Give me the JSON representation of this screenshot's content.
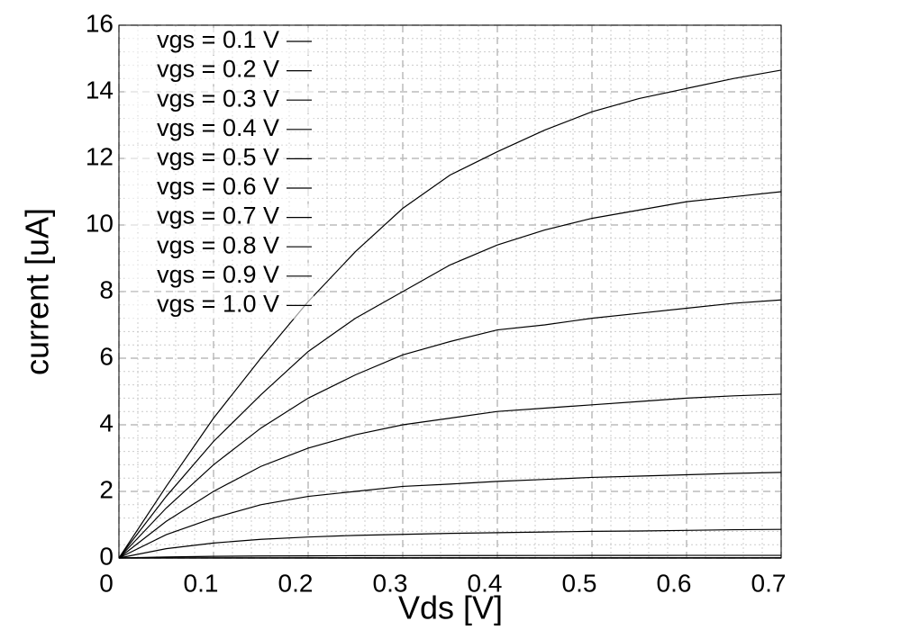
{
  "chart_data": {
    "type": "line",
    "xlabel": "Vds [V]",
    "ylabel": "current [uA]",
    "x": [
      0,
      0.05,
      0.1,
      0.15,
      0.2,
      0.25,
      0.3,
      0.35,
      0.4,
      0.45,
      0.5,
      0.55,
      0.6,
      0.65,
      0.7
    ],
    "series": [
      {
        "name": "vgs = 0.1 V",
        "color": "#000000",
        "values": [
          0,
          0,
          0,
          0,
          0,
          0,
          0,
          0,
          0,
          0,
          0,
          0,
          0,
          0,
          0
        ]
      },
      {
        "name": "vgs = 0.2 V",
        "color": "#000000",
        "values": [
          0,
          0,
          0,
          0,
          0,
          0,
          0,
          0,
          0,
          0,
          0,
          0,
          0,
          0,
          0
        ]
      },
      {
        "name": "vgs = 0.3 V",
        "color": "#000000",
        "values": [
          0,
          0.002,
          0.004,
          0.005,
          0.006,
          0.006,
          0.007,
          0.007,
          0.007,
          0.007,
          0.007,
          0.008,
          0.008,
          0.008,
          0.008
        ]
      },
      {
        "name": "vgs = 0.4 V",
        "color": "#000000",
        "values": [
          0,
          0.03,
          0.05,
          0.06,
          0.065,
          0.07,
          0.072,
          0.074,
          0.075,
          0.076,
          0.077,
          0.078,
          0.079,
          0.08,
          0.08
        ]
      },
      {
        "name": "vgs = 0.5 V",
        "color": "#000000",
        "values": [
          0,
          0.28,
          0.45,
          0.56,
          0.63,
          0.68,
          0.71,
          0.74,
          0.76,
          0.78,
          0.8,
          0.81,
          0.83,
          0.85,
          0.86
        ]
      },
      {
        "name": "vgs = 0.6 V",
        "color": "#000000",
        "values": [
          0,
          0.7,
          1.2,
          1.6,
          1.85,
          2.0,
          2.15,
          2.22,
          2.3,
          2.36,
          2.42,
          2.46,
          2.5,
          2.54,
          2.57
        ]
      },
      {
        "name": "vgs = 0.7 V",
        "color": "#000000",
        "values": [
          0,
          1.1,
          2.0,
          2.75,
          3.3,
          3.7,
          4.0,
          4.2,
          4.4,
          4.5,
          4.6,
          4.7,
          4.8,
          4.87,
          4.92
        ]
      },
      {
        "name": "vgs = 0.8 V",
        "color": "#000000",
        "values": [
          0,
          1.5,
          2.8,
          3.9,
          4.8,
          5.5,
          6.1,
          6.5,
          6.85,
          7.0,
          7.2,
          7.35,
          7.5,
          7.65,
          7.75
        ]
      },
      {
        "name": "vgs = 0.9 V",
        "color": "#000000",
        "values": [
          0,
          1.85,
          3.5,
          4.9,
          6.2,
          7.2,
          8.0,
          8.8,
          9.4,
          9.85,
          10.2,
          10.45,
          10.7,
          10.85,
          11.0
        ]
      },
      {
        "name": "vgs = 1.0 V",
        "color": "#000000",
        "values": [
          0,
          2.15,
          4.2,
          6.0,
          7.7,
          9.2,
          10.5,
          11.5,
          12.2,
          12.85,
          13.4,
          13.8,
          14.1,
          14.4,
          14.65
        ]
      }
    ],
    "xlim": [
      0,
      0.7
    ],
    "ylim": [
      0,
      16
    ],
    "xticks": [
      0,
      0.1,
      0.2,
      0.3,
      0.4,
      0.5,
      0.6,
      0.7
    ],
    "yticks": [
      0,
      2,
      4,
      6,
      8,
      10,
      12,
      14,
      16
    ],
    "grid": true,
    "minor_grid": 5,
    "legend": "upper left"
  }
}
